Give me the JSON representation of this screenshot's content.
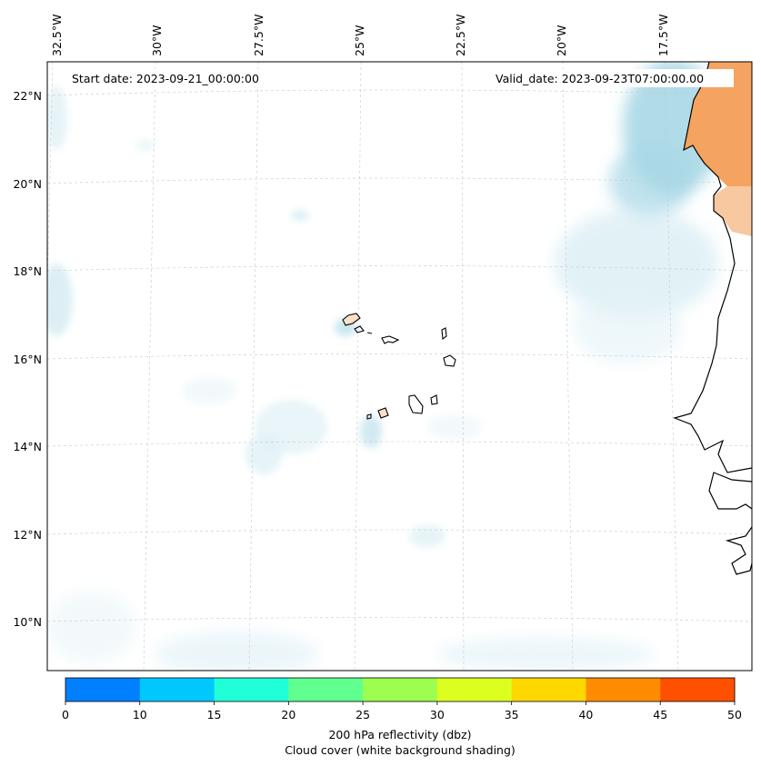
{
  "map": {
    "start_label": "Start date: 2023-09-21_00:00:00",
    "valid_label": "Valid_date: 2023-09-23T07:00:00.00",
    "longitude_labels": [
      "32.5°W",
      "30°W",
      "27.5°W",
      "25°W",
      "22.5°W",
      "20°W",
      "17.5°W"
    ],
    "latitude_labels": [
      "22°N",
      "20°N",
      "18°N",
      "16°N",
      "14°N",
      "12°N",
      "10°N"
    ],
    "land_color": "#f4a460",
    "cloud_color": "#a8d8e6"
  },
  "colorbar": {
    "colors": [
      "#0080ff",
      "#00c8ff",
      "#20ffd8",
      "#60ff90",
      "#9cff50",
      "#dcff20",
      "#ffd800",
      "#ff8c00",
      "#ff5000"
    ],
    "ticks": [
      "0",
      "10",
      "15",
      "20",
      "25",
      "30",
      "35",
      "40",
      "45",
      "50"
    ],
    "label_line1": "200 hPa reflectivity (dbz)",
    "label_line2": "Cloud cover (white background shading)"
  }
}
